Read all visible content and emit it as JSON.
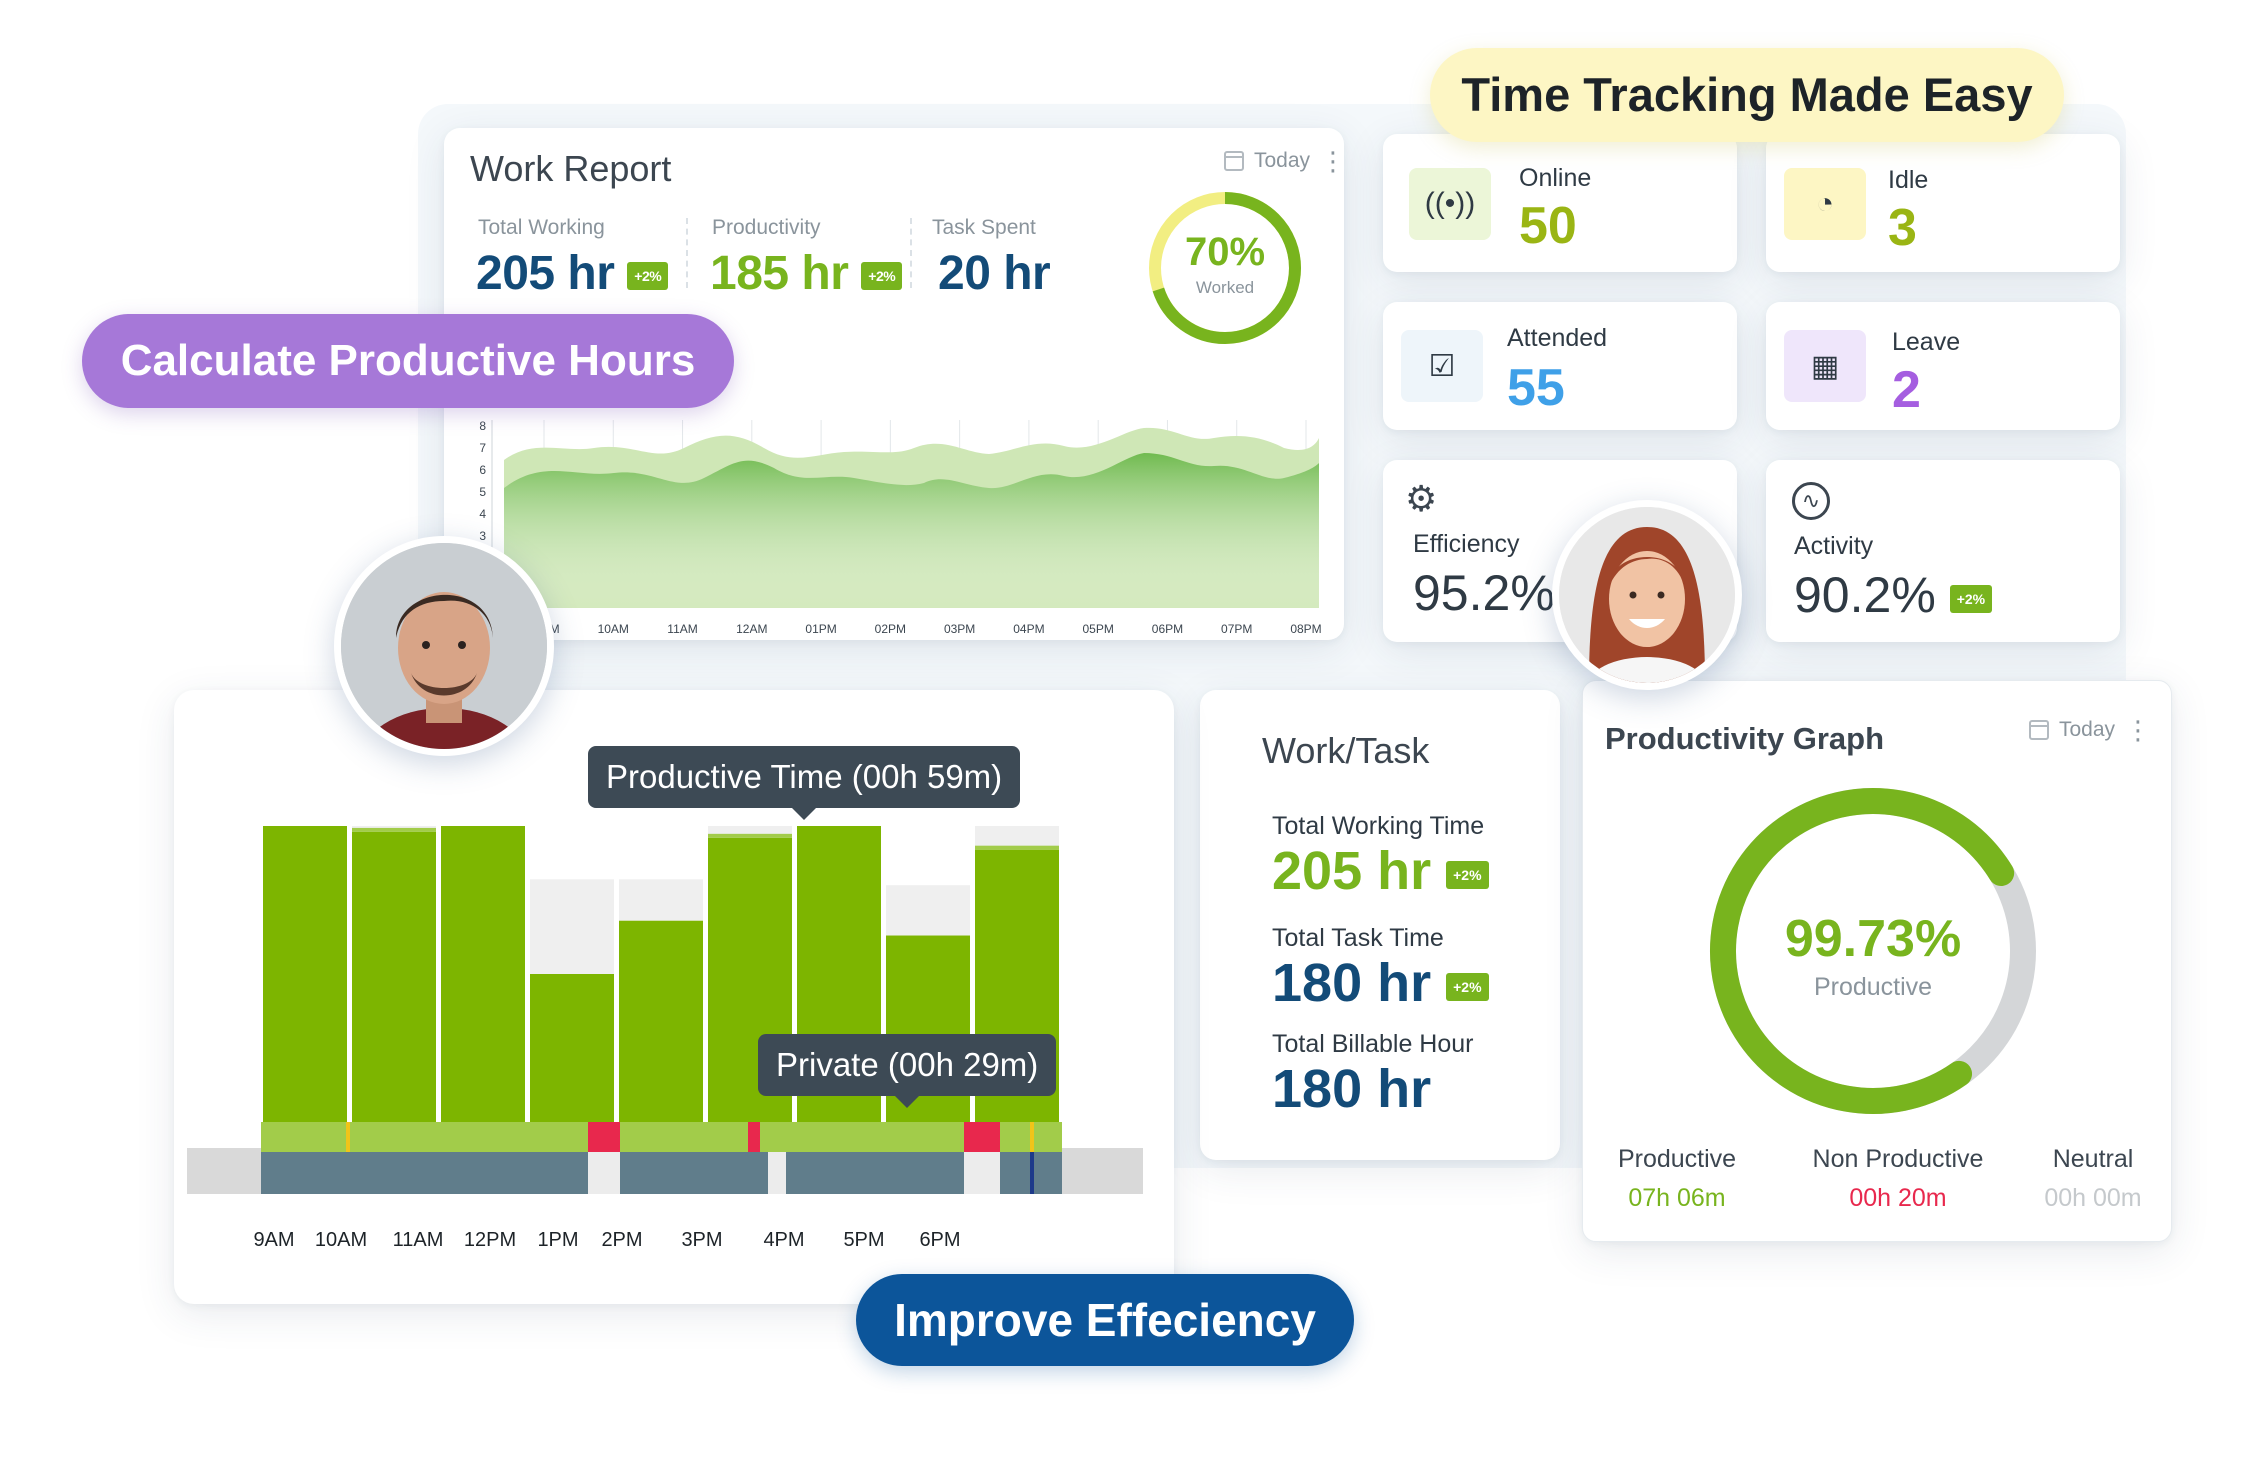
{
  "pills": {
    "tracking": "Time Tracking Made Easy",
    "productive_hours": "Calculate Productive Hours",
    "efficiency": "Improve Effeciency"
  },
  "colors": {
    "green": "#78b41e",
    "navy": "#134b78",
    "purple_pill": "#a678d8",
    "yellow_pill": "#fdf6c4",
    "blue_pill": "#0c559a",
    "red": "#e8284d"
  },
  "work_report": {
    "title": "Work Report",
    "filter": "Today",
    "stats": [
      {
        "label": "Total Working",
        "value": "205 hr",
        "badge": "+2%"
      },
      {
        "label": "Productivity",
        "value": "185 hr",
        "badge": "+2%"
      },
      {
        "label": "Task Spent",
        "value": "20 hr"
      }
    ],
    "ring": {
      "percent": 70,
      "value": "70%",
      "label": "Worked"
    },
    "area_chart": {
      "y_ticks": [
        "8",
        "7",
        "6",
        "5",
        "4",
        "3"
      ],
      "x_ticks": [
        "09AM",
        "10AM",
        "11AM",
        "12AM",
        "01PM",
        "02PM",
        "03PM",
        "04PM",
        "05PM",
        "06PM",
        "07PM",
        "08PM"
      ]
    }
  },
  "stats_cards": {
    "online": {
      "label": "Online",
      "value": "50",
      "icon": "broadcast-icon"
    },
    "idle": {
      "label": "Idle",
      "value": "3",
      "icon": "clock-icon"
    },
    "attended": {
      "label": "Attended",
      "value": "55",
      "icon": "calendar-check-icon"
    },
    "leave": {
      "label": "Leave",
      "value": "2",
      "icon": "calendar-grid-icon"
    },
    "efficiency": {
      "label": "Efficiency",
      "value": "95.2%",
      "icon": "gear-cycle-icon"
    },
    "activity": {
      "label": "Activity",
      "value": "90.2%",
      "badge": "+2%",
      "icon": "pulse-icon"
    }
  },
  "bar_chart": {
    "tooltips": {
      "productive": "Productive Time (00h 59m)",
      "private": "Private (00h 29m)"
    },
    "x_labels": [
      "9AM",
      "10AM",
      "11AM",
      "12PM",
      "1PM",
      "2PM",
      "3PM",
      "4PM",
      "5PM",
      "6PM"
    ]
  },
  "chart_data": {
    "type": "bar",
    "bars": [
      {
        "productive": 1.0,
        "light": 0.0
      },
      {
        "productive": 0.98,
        "light": 0.02
      },
      {
        "productive": 1.0,
        "light": 0.0
      },
      {
        "productive": 0.5,
        "light": 0.32
      },
      {
        "productive": 0.68,
        "light": 0.14
      },
      {
        "productive": 0.96,
        "light": 0.04
      },
      {
        "productive": 1.0,
        "light": 0.0
      },
      {
        "productive": 0.63,
        "light": 0.17
      },
      {
        "productive": 0.92,
        "light": 0.08
      }
    ]
  },
  "work_task": {
    "title": "Work/Task",
    "items": [
      {
        "label": "Total Working Time",
        "value": "205 hr",
        "badge": "+2%"
      },
      {
        "label": "Total Task Time",
        "value": "180 hr",
        "badge": "+2%"
      },
      {
        "label": "Total Billable Hour",
        "value": "180 hr"
      }
    ]
  },
  "productivity_graph": {
    "title": "Productivity Graph",
    "filter": "Today",
    "percent": 99.73,
    "value": "99.73%",
    "label": "Productive",
    "legend": [
      {
        "name": "Productive",
        "value": "07h 06m",
        "color": "#78b41e"
      },
      {
        "name": "Non Productive",
        "value": "00h 20m",
        "color": "#e8284d"
      },
      {
        "name": "Neutral",
        "value": "00h 00m",
        "color": "#c5c9cc"
      }
    ]
  }
}
